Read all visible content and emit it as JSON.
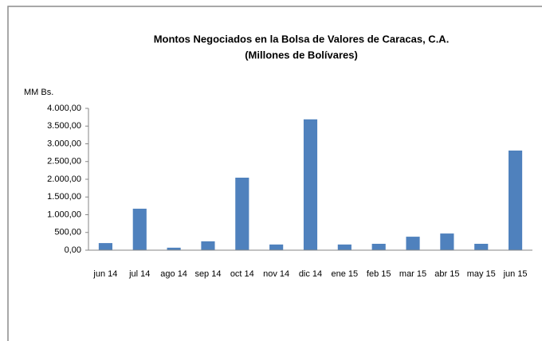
{
  "chart_data": {
    "type": "bar",
    "title": "Montos Negociados en la Bolsa de Valores de Caracas, C.A.",
    "subtitle": "(Millones de Bolívares)",
    "y_label": "MM Bs.",
    "categories": [
      "jun 14",
      "jul 14",
      "ago 14",
      "sep 14",
      "oct 14",
      "nov 14",
      "dic 14",
      "ene 15",
      "feb 15",
      "mar 15",
      "abr 15",
      "may 15",
      "jun 15"
    ],
    "values": [
      200,
      1170,
      70,
      250,
      2045,
      160,
      3690,
      160,
      180,
      380,
      470,
      180,
      2810
    ],
    "color": "#4f81bd",
    "ylim": [
      0,
      4000
    ],
    "yticks": [
      {
        "value": 0,
        "label": "0,00"
      },
      {
        "value": 500,
        "label": "500,00"
      },
      {
        "value": 1000,
        "label": "1.000,00"
      },
      {
        "value": 1500,
        "label": "1.500,00"
      },
      {
        "value": 2000,
        "label": "2.000,00"
      },
      {
        "value": 2500,
        "label": "2.500,00"
      },
      {
        "value": 3000,
        "label": "3.000,00"
      },
      {
        "value": 3500,
        "label": "3.500,00"
      },
      {
        "value": 4000,
        "label": "4.000,00"
      }
    ],
    "grid": false
  }
}
